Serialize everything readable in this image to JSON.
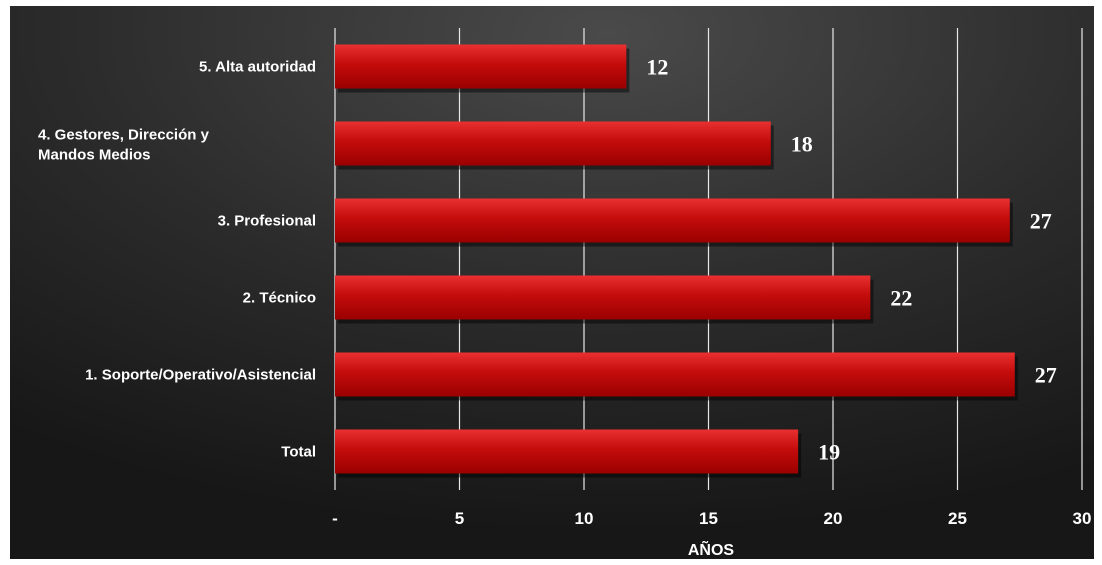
{
  "chart_data": {
    "type": "bar",
    "orientation": "horizontal",
    "categories": [
      "5. Alta autoridad",
      "4. Gestores, Dirección y Mandos Medios",
      "3. Profesional",
      "2. Técnico",
      "1. Soporte/Operativo/Asistencial",
      "Total"
    ],
    "category_lines": [
      [
        "5. Alta autoridad"
      ],
      [
        "4. Gestores, Dirección y",
        "Mandos Medios"
      ],
      [
        "3. Profesional"
      ],
      [
        "2. Técnico"
      ],
      [
        "1. Soporte/Operativo/Asistencial"
      ],
      [
        "Total"
      ]
    ],
    "values": [
      11.7,
      17.5,
      27.1,
      21.5,
      27.3,
      18.6
    ],
    "data_labels": [
      "12",
      "18",
      "27",
      "22",
      "27",
      "19"
    ],
    "xlabel": "AÑOS",
    "xlim": [
      0,
      30
    ],
    "xticks": [
      0,
      5,
      10,
      15,
      20,
      25,
      30
    ],
    "xtick_labels": [
      "-",
      "5",
      "10",
      "15",
      "20",
      "25",
      "30"
    ],
    "grid": true,
    "colors": {
      "background_center": "#4a4a4a",
      "background_edge": "#1a1a1a",
      "bar_top": "#e02020",
      "bar_bottom": "#a30000",
      "gridline": "#e8e8e8",
      "text": "#ffffff"
    }
  }
}
